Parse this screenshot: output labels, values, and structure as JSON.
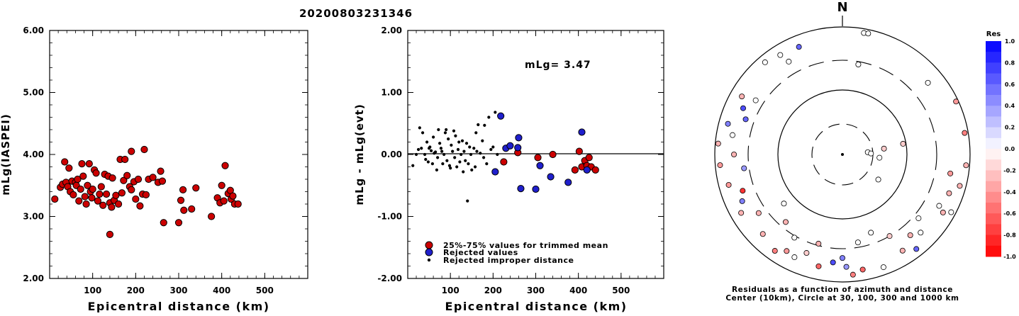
{
  "figure_title": "20200803231346",
  "colors": {
    "accepted": "#cc0000",
    "rejected": "#1f1fcc",
    "improper": "#000000",
    "res_positive": "#0000ff",
    "res_negative": "#ff0000"
  },
  "chart_data": [
    {
      "type": "scatter",
      "title": "",
      "xlabel": "Epicentral distance (km)",
      "ylabel": "mLg(IASPEI)",
      "xlim": [
        0,
        600
      ],
      "ylim": [
        2.0,
        6.0
      ],
      "x_ticks": [
        "100",
        "200",
        "300",
        "400",
        "500"
      ],
      "y_ticks": [
        "2.00",
        "3.00",
        "4.00",
        "5.00",
        "6.00"
      ],
      "series": [
        {
          "values": [
            [
              12,
              3.28
            ],
            [
              25,
              3.47
            ],
            [
              30,
              3.52
            ],
            [
              35,
              3.88
            ],
            [
              38,
              3.55
            ],
            [
              42,
              3.48
            ],
            [
              45,
              3.78
            ],
            [
              48,
              3.4
            ],
            [
              52,
              3.57
            ],
            [
              55,
              3.35
            ],
            [
              60,
              3.55
            ],
            [
              62,
              3.5
            ],
            [
              65,
              3.6
            ],
            [
              68,
              3.25
            ],
            [
              72,
              3.44
            ],
            [
              75,
              3.85
            ],
            [
              78,
              3.65
            ],
            [
              82,
              3.32
            ],
            [
              85,
              3.2
            ],
            [
              88,
              3.5
            ],
            [
              92,
              3.85
            ],
            [
              95,
              3.4
            ],
            [
              98,
              3.3
            ],
            [
              100,
              3.44
            ],
            [
              104,
              3.75
            ],
            [
              108,
              3.7
            ],
            [
              112,
              3.25
            ],
            [
              116,
              3.36
            ],
            [
              120,
              3.48
            ],
            [
              124,
              3.18
            ],
            [
              128,
              3.68
            ],
            [
              132,
              3.36
            ],
            [
              136,
              3.65
            ],
            [
              140,
              3.22
            ],
            [
              140,
              2.71
            ],
            [
              144,
              3.15
            ],
            [
              146,
              3.62
            ],
            [
              150,
              3.26
            ],
            [
              154,
              3.34
            ],
            [
              160,
              3.2
            ],
            [
              164,
              3.92
            ],
            [
              168,
              3.38
            ],
            [
              172,
              3.58
            ],
            [
              175,
              3.92
            ],
            [
              180,
              3.66
            ],
            [
              186,
              3.48
            ],
            [
              190,
              3.43
            ],
            [
              190,
              4.05
            ],
            [
              196,
              3.56
            ],
            [
              200,
              3.28
            ],
            [
              206,
              3.6
            ],
            [
              210,
              3.17
            ],
            [
              216,
              3.36
            ],
            [
              220,
              4.08
            ],
            [
              224,
              3.35
            ],
            [
              230,
              3.6
            ],
            [
              240,
              3.63
            ],
            [
              252,
              3.55
            ],
            [
              258,
              3.73
            ],
            [
              262,
              3.57
            ],
            [
              265,
              2.9
            ],
            [
              300,
              2.9
            ],
            [
              305,
              3.26
            ],
            [
              310,
              3.43
            ],
            [
              312,
              3.1
            ],
            [
              330,
              3.12
            ],
            [
              340,
              3.46
            ],
            [
              376,
              3.0
            ],
            [
              390,
              3.3
            ],
            [
              396,
              3.22
            ],
            [
              400,
              3.5
            ],
            [
              405,
              3.25
            ],
            [
              408,
              3.82
            ],
            [
              415,
              3.37
            ],
            [
              420,
              3.42
            ],
            [
              422,
              3.28
            ],
            [
              426,
              3.33
            ],
            [
              430,
              3.2
            ],
            [
              438,
              3.2
            ]
          ]
        }
      ]
    },
    {
      "type": "scatter",
      "title": "",
      "xlabel": "Epicentral distance (km)",
      "ylabel": "mLg - mLg(evt)",
      "annotation": "mLg= 3.47",
      "xlim": [
        0,
        600
      ],
      "ylim": [
        -2.0,
        2.0
      ],
      "x_ticks": [
        "100",
        "200",
        "300",
        "400",
        "500"
      ],
      "y_ticks": [
        "-2.00",
        "-1.00",
        "0.00",
        "1.00",
        "2.00"
      ],
      "legend_position": "bottom-left",
      "series": [
        {
          "name": "25%-75% values for trimmed mean",
          "values": [
            [
              225,
              -0.12
            ],
            [
              258,
              0.03
            ],
            [
              305,
              -0.05
            ],
            [
              340,
              0.0
            ],
            [
              392,
              -0.25
            ],
            [
              402,
              0.05
            ],
            [
              408,
              -0.2
            ],
            [
              415,
              -0.1
            ],
            [
              420,
              -0.18
            ],
            [
              425,
              -0.05
            ],
            [
              430,
              -0.2
            ],
            [
              440,
              -0.25
            ]
          ]
        },
        {
          "name": "Rejected values",
          "values": [
            [
              205,
              -0.28
            ],
            [
              218,
              0.62
            ],
            [
              230,
              0.1
            ],
            [
              240,
              0.14
            ],
            [
              258,
              0.11
            ],
            [
              260,
              0.27
            ],
            [
              265,
              -0.55
            ],
            [
              300,
              -0.56
            ],
            [
              310,
              -0.18
            ],
            [
              335,
              -0.36
            ],
            [
              376,
              -0.45
            ],
            [
              408,
              0.36
            ],
            [
              420,
              -0.25
            ]
          ]
        },
        {
          "name": "Rejected improper distance",
          "values": [
            [
              12,
              -0.18
            ],
            [
              20,
              0.0
            ],
            [
              25,
              0.08
            ],
            [
              28,
              0.43
            ],
            [
              32,
              0.1
            ],
            [
              35,
              0.35
            ],
            [
              40,
              0.0
            ],
            [
              42,
              -0.08
            ],
            [
              45,
              0.2
            ],
            [
              48,
              -0.12
            ],
            [
              50,
              0.1
            ],
            [
              52,
              0.12
            ],
            [
              55,
              0.06
            ],
            [
              58,
              -0.15
            ],
            [
              60,
              0.28
            ],
            [
              62,
              0.02
            ],
            [
              65,
              0.04
            ],
            [
              68,
              -0.25
            ],
            [
              70,
              -0.05
            ],
            [
              72,
              0.4
            ],
            [
              75,
              0.18
            ],
            [
              78,
              0.1
            ],
            [
              80,
              0.05
            ],
            [
              82,
              -0.15
            ],
            [
              85,
              0.0
            ],
            [
              88,
              0.35
            ],
            [
              90,
              0.4
            ],
            [
              92,
              -0.1
            ],
            [
              95,
              0.25
            ],
            [
              98,
              -0.18
            ],
            [
              100,
              -0.22
            ],
            [
              102,
              0.15
            ],
            [
              105,
              0.05
            ],
            [
              108,
              0.38
            ],
            [
              110,
              -0.05
            ],
            [
              112,
              0.3
            ],
            [
              115,
              -0.2
            ],
            [
              118,
              0.08
            ],
            [
              120,
              0.2
            ],
            [
              122,
              -0.12
            ],
            [
              125,
              0.0
            ],
            [
              128,
              0.22
            ],
            [
              130,
              -0.28
            ],
            [
              132,
              0.05
            ],
            [
              135,
              -0.1
            ],
            [
              138,
              0.18
            ],
            [
              140,
              -0.75
            ],
            [
              142,
              -0.15
            ],
            [
              145,
              0.12
            ],
            [
              148,
              0.0
            ],
            [
              150,
              -0.25
            ],
            [
              155,
              0.1
            ],
            [
              158,
              -0.2
            ],
            [
              160,
              0.35
            ],
            [
              162,
              0.05
            ],
            [
              165,
              0.48
            ],
            [
              170,
              0.02
            ],
            [
              175,
              0.22
            ],
            [
              178,
              -0.05
            ],
            [
              180,
              0.47
            ],
            [
              185,
              -0.15
            ],
            [
              190,
              0.6
            ],
            [
              195,
              0.08
            ],
            [
              200,
              0.12
            ],
            [
              205,
              0.68
            ],
            [
              210,
              0.0
            ]
          ]
        }
      ]
    },
    {
      "type": "scatter",
      "title": "",
      "north_label": "N",
      "caption_line1": "Residuals as a function of azimuth and distance",
      "caption_line2": "Center (10km), Circle at 30, 100, 300 and 1000 km",
      "colorbar": {
        "label": "Res",
        "range": [
          -1.0,
          1.0
        ],
        "ticks": [
          "1.0",
          "0.8",
          "0.6",
          "0.4",
          "0.2",
          "0.0",
          "-0.2",
          "-0.4",
          "-0.6",
          "-0.8",
          "-1.0"
        ]
      },
      "values_note_x": "azimuth_deg",
      "values_note_y": "distance_km",
      "stations": [
        {
          "azimuth": 10,
          "distance": 860,
          "res": 0.0
        },
        {
          "azimuth": 12,
          "distance": 870,
          "res": 0.0
        },
        {
          "azimuth": 320,
          "distance": 770,
          "res": 0.0
        },
        {
          "azimuth": 328,
          "distance": 690,
          "res": 0.0
        },
        {
          "azimuth": 338,
          "distance": 660,
          "res": 0.6
        },
        {
          "azimuth": 330,
          "distance": 480,
          "res": 0.0
        },
        {
          "azimuth": 10,
          "distance": 270,
          "res": 0.0
        },
        {
          "azimuth": 50,
          "distance": 560,
          "res": 0.0
        },
        {
          "azimuth": 65,
          "distance": 920,
          "res": -0.4
        },
        {
          "azimuth": 80,
          "distance": 880,
          "res": -0.5
        },
        {
          "azimuth": 95,
          "distance": 880,
          "res": -0.3
        },
        {
          "azimuth": 105,
          "distance": 800,
          "res": -0.3
        },
        {
          "azimuth": 118,
          "distance": 850,
          "res": 0.0
        },
        {
          "azimuth": 85,
          "distance": 25,
          "res": 0.0
        },
        {
          "azimuth": 88,
          "distance": 28,
          "res": 0.0
        },
        {
          "azimuth": 82,
          "distance": 45,
          "res": -0.2
        },
        {
          "azimuth": 95,
          "distance": 38,
          "res": 0.0
        },
        {
          "azimuth": 125,
          "distance": 48,
          "res": 0.0
        },
        {
          "azimuth": 80,
          "distance": 90,
          "res": -0.2
        },
        {
          "azimuth": 230,
          "distance": 155,
          "res": 0.0
        },
        {
          "azimuth": 180,
          "distance": 420,
          "res": 0.5
        },
        {
          "azimuth": 185,
          "distance": 500,
          "res": 0.7
        },
        {
          "azimuth": 178,
          "distance": 580,
          "res": 0.4
        },
        {
          "azimuth": 192,
          "distance": 620,
          "res": -0.6
        },
        {
          "azimuth": 170,
          "distance": 680,
          "res": -0.6
        },
        {
          "azimuth": 175,
          "distance": 780,
          "res": -0.5
        },
        {
          "azimuth": 160,
          "distance": 760,
          "res": 0.0
        },
        {
          "azimuth": 142,
          "distance": 760,
          "res": 0.6
        },
        {
          "azimuth": 205,
          "distance": 600,
          "res": 0.0
        },
        {
          "azimuth": 210,
          "distance": 560,
          "res": -0.4
        },
        {
          "azimuth": 215,
          "distance": 700,
          "res": -0.5
        },
        {
          "azimuth": 225,
          "distance": 580,
          "res": -0.3
        },
        {
          "azimuth": 235,
          "distance": 400,
          "res": -0.3
        },
        {
          "azimuth": 240,
          "distance": 680,
          "res": -0.3
        },
        {
          "azimuth": 245,
          "distance": 540,
          "res": 0.5
        },
        {
          "azimuth": 250,
          "distance": 460,
          "res": -0.8
        },
        {
          "azimuth": 255,
          "distance": 700,
          "res": -0.4
        },
        {
          "azimuth": 262,
          "distance": 360,
          "res": 0.4
        },
        {
          "azimuth": 265,
          "distance": 840,
          "res": -0.4
        },
        {
          "azimuth": 270,
          "distance": 500,
          "res": -0.3
        },
        {
          "azimuth": 275,
          "distance": 900,
          "res": -0.3
        },
        {
          "azimuth": 280,
          "distance": 560,
          "res": 0.0
        },
        {
          "azimuth": 285,
          "distance": 720,
          "res": 0.5
        },
        {
          "azimuth": 290,
          "distance": 410,
          "res": 0.6
        },
        {
          "azimuth": 295,
          "distance": 520,
          "res": 0.7
        },
        {
          "azimuth": 300,
          "distance": 660,
          "res": -0.3
        },
        {
          "azimuth": 302,
          "distance": 400,
          "res": 0.0
        },
        {
          "azimuth": 140,
          "distance": 450,
          "res": -0.3
        },
        {
          "azimuth": 130,
          "distance": 360,
          "res": 0.0
        },
        {
          "azimuth": 150,
          "distance": 300,
          "res": -0.2
        },
        {
          "azimuth": 160,
          "distance": 200,
          "res": 0.0
        },
        {
          "azimuth": 170,
          "distance": 250,
          "res": 0.0
        },
        {
          "azimuth": 195,
          "distance": 280,
          "res": -0.3
        },
        {
          "azimuth": 200,
          "distance": 440,
          "res": -0.2
        },
        {
          "azimuth": 210,
          "distance": 320,
          "res": 0.0
        },
        {
          "azimuth": 220,
          "distance": 240,
          "res": -0.3
        },
        {
          "azimuth": 110,
          "distance": 600,
          "res": -0.3
        },
        {
          "azimuth": 100,
          "distance": 520,
          "res": -0.4
        },
        {
          "azimuth": 118,
          "distance": 520,
          "res": 0.0
        },
        {
          "azimuth": 135,
          "distance": 540,
          "res": 0.0
        },
        {
          "azimuth": 148,
          "distance": 600,
          "res": -0.3
        },
        {
          "azimuth": 120,
          "distance": 660,
          "res": -0.3
        }
      ]
    }
  ]
}
